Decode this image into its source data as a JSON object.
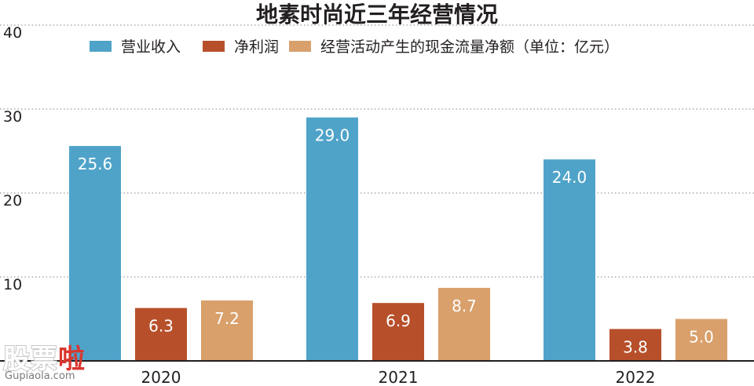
{
  "chart_data": {
    "type": "bar",
    "title": "地素时尚近三年经营情况",
    "categories": [
      "2020",
      "2021",
      "2022"
    ],
    "series": [
      {
        "name": "营业收入",
        "values": [
          25.6,
          29.0,
          24.0
        ],
        "color": "#4fa3c9"
      },
      {
        "name": "净利润",
        "values": [
          6.3,
          6.9,
          3.8
        ],
        "color": "#b7502a"
      },
      {
        "name": "经营活动产生的现金流量净额（单位：亿元）",
        "values": [
          7.2,
          8.7,
          5.0
        ],
        "color": "#d9a06b"
      }
    ],
    "yticks": [
      "10",
      "20",
      "30",
      "40"
    ],
    "ylim": [
      0,
      40
    ],
    "grid": true,
    "legend_position": "top"
  },
  "watermark": {
    "chars": [
      "股",
      "票",
      "啦"
    ],
    "url": "Gupiaola.com"
  }
}
